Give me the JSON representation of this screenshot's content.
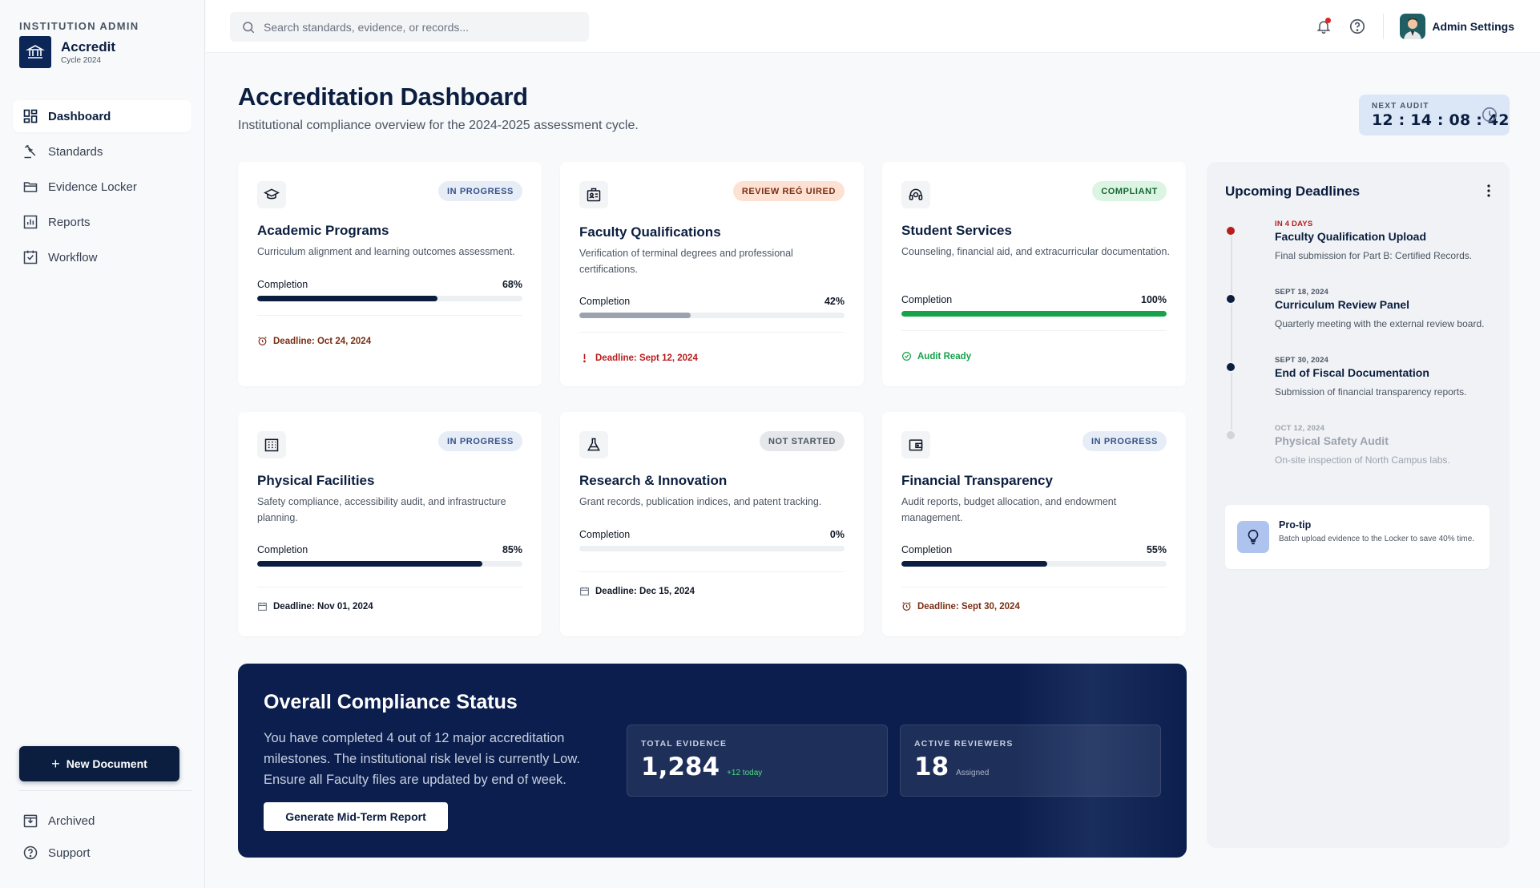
{
  "sidebar": {
    "institution_label": "INSTITUTION ADMIN",
    "brand_name": "Accredit",
    "brand_cycle": "Cycle 2024",
    "nav": [
      {
        "label": "Dashboard",
        "icon": "dashboard-icon",
        "active": true
      },
      {
        "label": "Standards",
        "icon": "gavel-icon",
        "active": false
      },
      {
        "label": "Evidence Locker",
        "icon": "folder-icon",
        "active": false
      },
      {
        "label": "Reports",
        "icon": "chart-icon",
        "active": false
      },
      {
        "label": "Workflow",
        "icon": "checkbox-icon",
        "active": false
      }
    ],
    "new_document_label": "New Document",
    "bottom_nav": [
      {
        "label": "Archived",
        "icon": "archive-icon"
      },
      {
        "label": "Support",
        "icon": "help-icon"
      }
    ]
  },
  "topbar": {
    "search_placeholder": "Search standards, evidence, or records...",
    "admin_label": "Admin Settings"
  },
  "header": {
    "title": "Accreditation Dashboard",
    "subtitle": "Institutional compliance overview for the 2024-2025 assessment cycle.",
    "next_audit_label": "NEXT AUDIT",
    "next_audit_time": "12 : 14 : 08 : 42"
  },
  "colors": {
    "navy": "#0b1e3f",
    "bar_gray": "#9ca3af",
    "success": "#16a34a",
    "danger": "#b91c1c",
    "warning_text": "#7a2e14"
  },
  "cards": [
    {
      "title": "Academic Programs",
      "badge": "IN PROGRESS",
      "desc": "Curriculum alignment and learning outcomes assessment.",
      "completion_label": "Completion",
      "completion_pct": "68%",
      "progress": 0.68,
      "deadline": "Deadline: Oct 24, 2024",
      "icon": "graduation-cap-icon"
    },
    {
      "title": "Faculty Qualifications",
      "badge": "REVIEW REǴ UIRED",
      "desc": "Verification of terminal degrees and professional certifications.",
      "completion_label": "Completion",
      "completion_pct": "42%",
      "progress": 0.42,
      "deadline": "Deadline: Sept 12, 2024",
      "icon": "id-badge-icon"
    },
    {
      "title": "Student Services",
      "badge": "COMPLIANT",
      "desc": "Counseling, financial aid, and extracurricular documentation.",
      "completion_label": "Completion",
      "completion_pct": "100%",
      "progress": 1.0,
      "deadline": "Audit Ready",
      "icon": "support-agent-icon"
    },
    {
      "title": "Physical Facilities",
      "badge": "IN PROGRESS",
      "desc": "Safety compliance, accessibility audit, and infrastructure planning.",
      "completion_label": "Completion",
      "completion_pct": "85%",
      "progress": 0.85,
      "deadline": "Deadline: Nov 01, 2024",
      "icon": "building-icon"
    },
    {
      "title": "Research & Innovation",
      "badge": "NOT STARTED",
      "desc": "Grant records, publication indices, and patent tracking.",
      "completion_label": "Completion",
      "completion_pct": "0%",
      "progress": 0.0,
      "deadline": "Deadline: Dec 15, 2024",
      "icon": "flask-icon"
    },
    {
      "title": "Financial Transparency",
      "badge": "IN PROGRESS",
      "desc": "Audit reports, budget allocation, and endowment management.",
      "completion_label": "Completion",
      "completion_pct": "55%",
      "progress": 0.55,
      "deadline": "Deadline: Sept 30, 2024",
      "icon": "wallet-icon"
    }
  ],
  "compliance": {
    "title": "Overall Compliance Status",
    "text": "You have completed 4 out of 12 major accreditation milestones. The institutional risk level is currently Low. Ensure all Faculty files are updated by end of week.",
    "button_label": "Generate Mid-Term Report",
    "total_evidence_label": "TOTAL EVIDENCE",
    "total_evidence_value": "1,284",
    "total_evidence_sub": "+12 today",
    "active_reviewers_label": "ACTIVE REVIEWERS",
    "active_reviewers_value": "18",
    "active_reviewers_sub": "Assigned"
  },
  "deadlines": {
    "title": "Upcoming Deadlines",
    "items": [
      {
        "date": "IN 4 DAYS",
        "title": "Faculty Qualification Upload",
        "desc": "Final submission for Part B: Certified Records."
      },
      {
        "date": "SEPT 18, 2024",
        "title": "Curriculum Review Panel",
        "desc": "Quarterly meeting with the external review board."
      },
      {
        "date": "SEPT 30, 2024",
        "title": "End of Fiscal Documentation",
        "desc": "Submission of financial transparency reports."
      },
      {
        "date": "OCT 12, 2024",
        "title": "Physical Safety Audit",
        "desc": "On-site inspection of North Campus labs."
      }
    ],
    "tip_title": "Pro-tip",
    "tip_text": "Batch upload evidence to the Locker to save 40% time."
  }
}
